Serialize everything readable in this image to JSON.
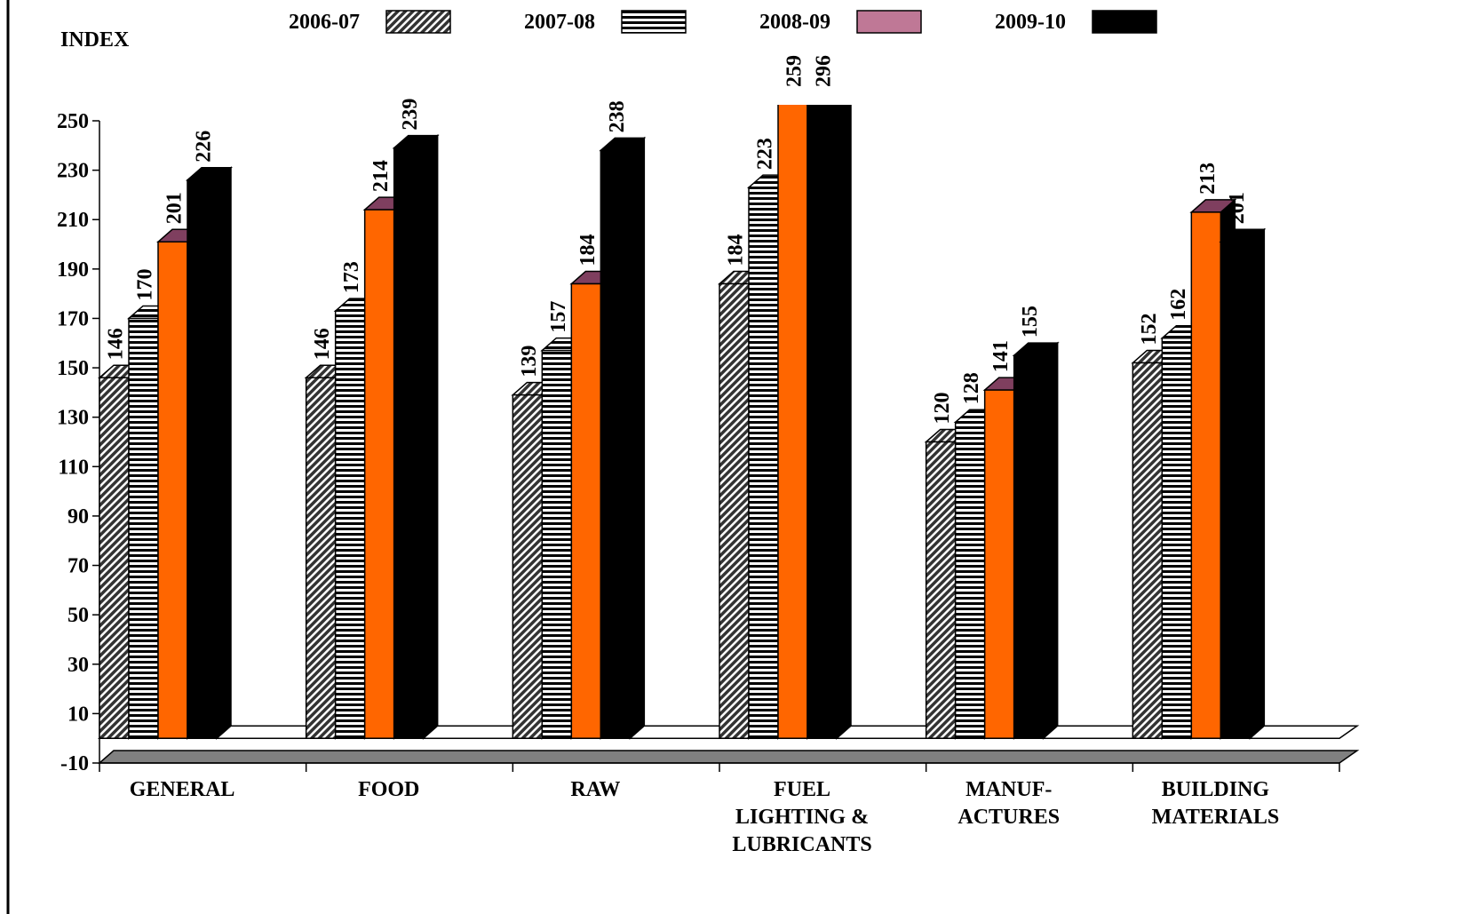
{
  "chart_data": {
    "type": "bar3d",
    "ylabel": "INDEX",
    "categories": [
      "GENERAL",
      "FOOD",
      "RAW",
      "FUEL\nLIGHTING &\nLUBRICANTS",
      "MANUF-\nACTURES",
      "BUILDING\nMATERIALS"
    ],
    "series": [
      {
        "name": "2006-07",
        "color": "hatch",
        "values": [
          146,
          146,
          139,
          184,
          120,
          152
        ]
      },
      {
        "name": "2007-08",
        "color": "stripes",
        "values": [
          170,
          173,
          157,
          223,
          128,
          162
        ]
      },
      {
        "name": "2008-09",
        "color": "#ff6600",
        "legend_color": "#bf7896",
        "values": [
          201,
          214,
          184,
          259,
          141,
          213
        ]
      },
      {
        "name": "2009-10",
        "color": "#000000",
        "values": [
          226,
          239,
          238,
          296,
          155,
          201
        ]
      }
    ],
    "ylim": [
      -10,
      250
    ],
    "yticks": [
      -10,
      10,
      30,
      50,
      70,
      90,
      110,
      130,
      150,
      170,
      190,
      210,
      230,
      250
    ]
  }
}
